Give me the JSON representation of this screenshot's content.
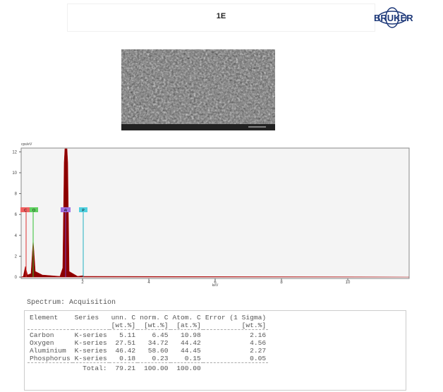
{
  "header": {
    "title": "1E",
    "logo": "BRUKER"
  },
  "spectrum": {
    "xlabel": "keV",
    "ylabel": "cps/eV",
    "xticks": [
      2,
      4,
      6,
      8,
      10
    ],
    "yticks": [
      0,
      2,
      4,
      6,
      8,
      10,
      12
    ],
    "peaks": [
      "C",
      "O",
      "Al",
      "P"
    ]
  },
  "table": {
    "caption": "Spectrum: Acquisition",
    "columns": [
      [
        "Element",
        ""
      ],
      [
        "Series",
        ""
      ],
      [
        "unn. C",
        "[wt.%]"
      ],
      [
        "norm. C",
        "[wt.%]"
      ],
      [
        "Atom. C",
        "[at.%]"
      ],
      [
        "Error (1 Sigma)",
        "[wt.%]"
      ]
    ],
    "rows": [
      [
        "Carbon",
        "K-series",
        "5.11",
        "6.45",
        "10.98",
        "2.16"
      ],
      [
        "Oxygen",
        "K-series",
        "27.51",
        "34.72",
        "44.42",
        "4.56"
      ],
      [
        "Aluminium",
        "K-series",
        "46.42",
        "58.60",
        "44.45",
        "2.27"
      ],
      [
        "Phosphorus",
        "K-series",
        "0.18",
        "0.23",
        "0.15",
        "0.05"
      ]
    ],
    "total": [
      "Total:",
      "79.21",
      "100.00",
      "100.00"
    ]
  }
}
